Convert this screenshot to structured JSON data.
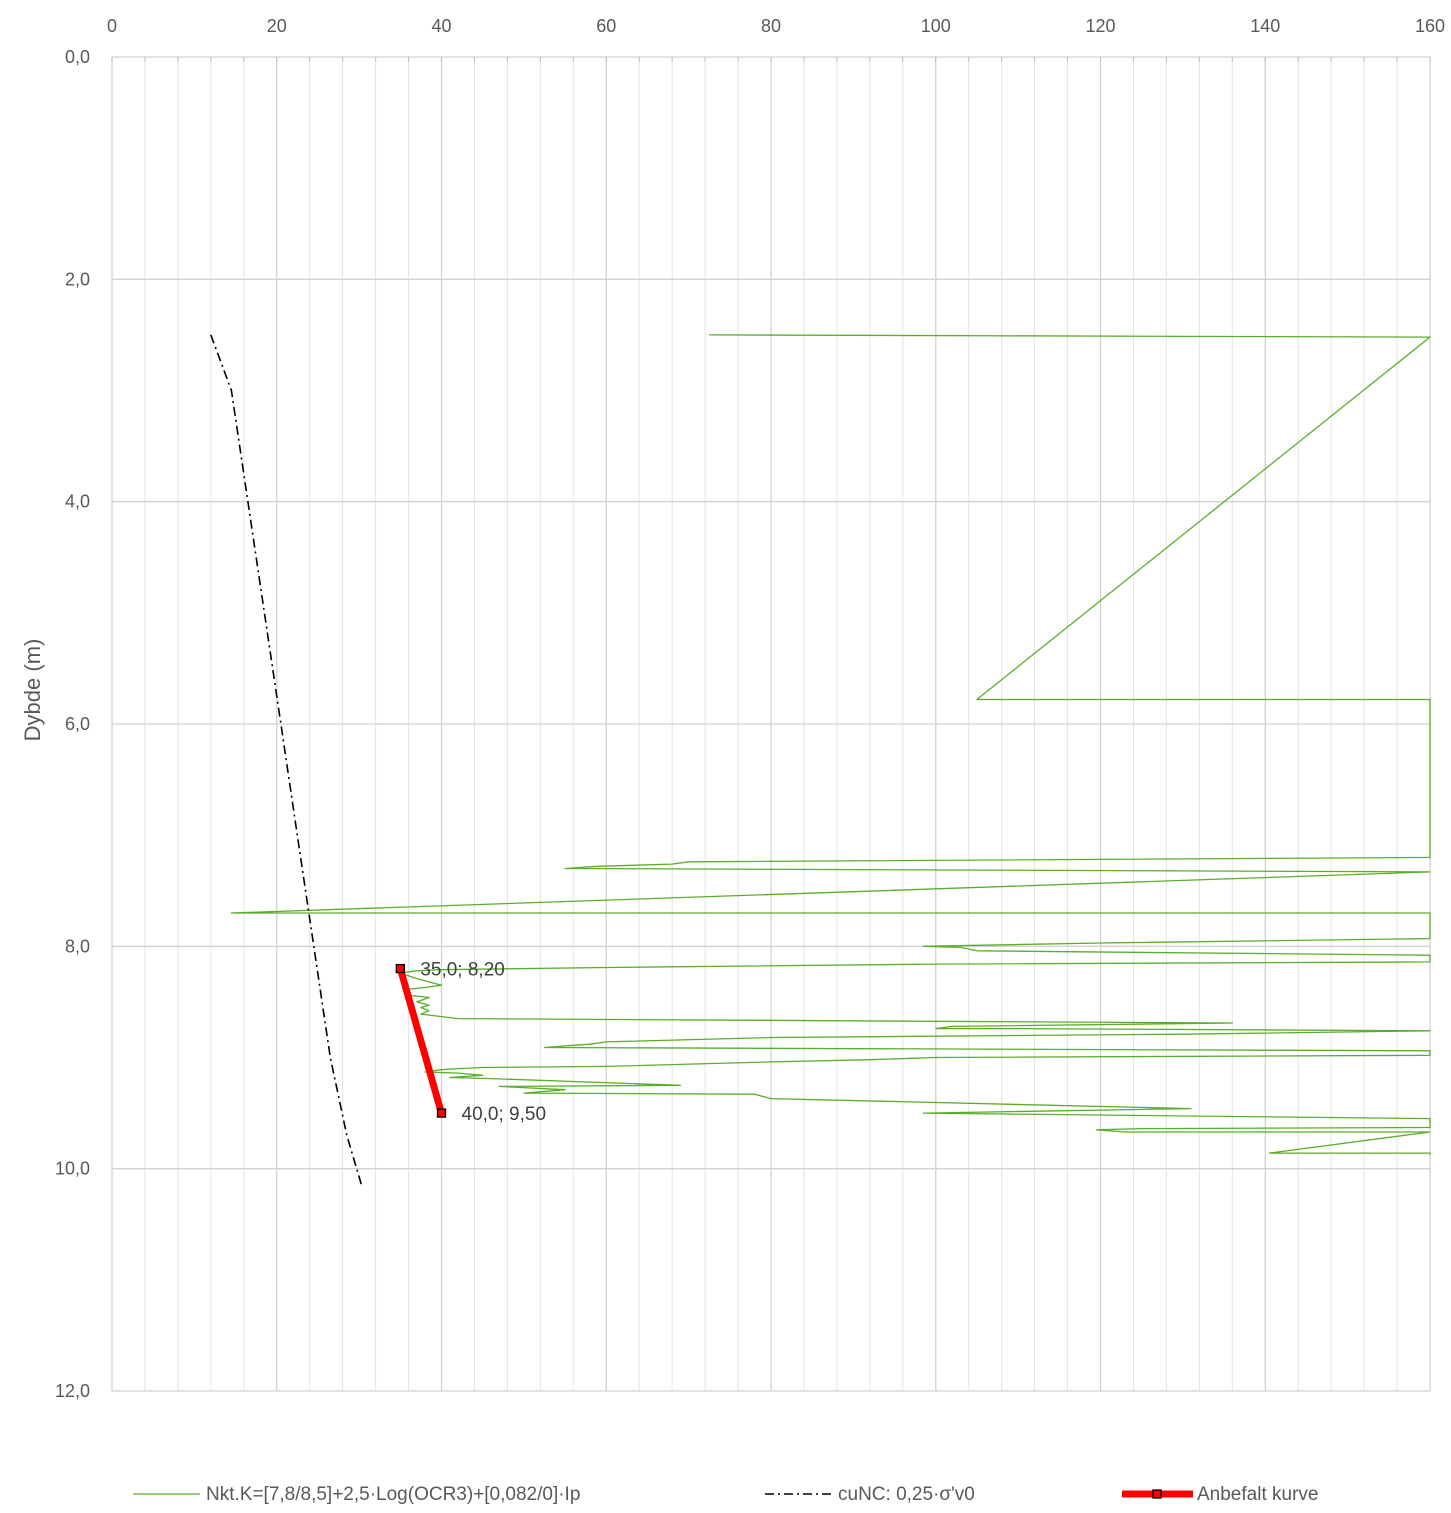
{
  "chart_data": {
    "type": "line",
    "title": "",
    "xlabel": "",
    "ylabel": "Dybde (m)",
    "xlim": [
      0,
      160
    ],
    "ylim": [
      12,
      0
    ],
    "y_inverted": true,
    "x_axis_position": "top",
    "x_ticks": [
      "0",
      "20",
      "40",
      "60",
      "80",
      "100",
      "120",
      "140",
      "160"
    ],
    "y_ticks": [
      "0,0",
      "2,0",
      "4,0",
      "6,0",
      "8,0",
      "10,0",
      "12,0"
    ],
    "grid": true,
    "legend_position": "bottom",
    "colors": {
      "nkt": "#5aad2b",
      "cunc": "#000000",
      "anbefalt": "#ff0000"
    },
    "series": [
      {
        "name": "Nkt.K=[7,8/8,5]+2,5·Log(OCR3)+[0,082/0]·Ip",
        "style": "solid-thin",
        "points": [
          [
            72.5,
            2.5
          ],
          [
            160,
            2.52
          ],
          [
            105,
            5.78
          ],
          [
            160,
            5.78
          ],
          [
            160,
            7.2
          ],
          [
            70,
            7.24
          ],
          [
            68,
            7.26
          ],
          [
            59,
            7.28
          ],
          [
            55,
            7.3
          ],
          [
            160,
            7.33
          ],
          [
            14.5,
            7.7
          ],
          [
            160,
            7.7
          ],
          [
            160,
            7.93
          ],
          [
            120,
            7.97
          ],
          [
            98.5,
            8.0
          ],
          [
            103,
            8.01
          ],
          [
            105,
            8.04
          ],
          [
            160,
            8.08
          ],
          [
            160,
            8.14
          ],
          [
            100,
            8.16
          ],
          [
            60,
            8.19
          ],
          [
            40,
            8.21
          ],
          [
            37,
            8.22
          ],
          [
            35,
            8.24
          ],
          [
            37,
            8.29
          ],
          [
            40,
            8.35
          ],
          [
            38,
            8.37
          ],
          [
            35.5,
            8.39
          ],
          [
            36,
            8.44
          ],
          [
            38.5,
            8.46
          ],
          [
            37,
            8.5
          ],
          [
            38.5,
            8.53
          ],
          [
            37.5,
            8.55
          ],
          [
            38.5,
            8.58
          ],
          [
            37.5,
            8.61
          ],
          [
            42,
            8.65
          ],
          [
            136,
            8.69
          ],
          [
            102,
            8.72
          ],
          [
            100,
            8.74
          ],
          [
            110,
            8.74
          ],
          [
            160,
            8.76
          ],
          [
            130,
            8.79
          ],
          [
            80,
            8.82
          ],
          [
            60,
            8.86
          ],
          [
            58,
            8.88
          ],
          [
            56,
            8.89
          ],
          [
            52.5,
            8.91
          ],
          [
            160,
            8.94
          ],
          [
            160,
            8.98
          ],
          [
            100,
            9.0
          ],
          [
            92,
            9.02
          ],
          [
            80,
            9.04
          ],
          [
            60,
            9.08
          ],
          [
            45,
            9.09
          ],
          [
            42,
            9.1
          ],
          [
            40,
            9.11
          ],
          [
            38,
            9.13
          ],
          [
            42,
            9.14
          ],
          [
            45,
            9.16
          ],
          [
            41,
            9.18
          ],
          [
            46,
            9.19
          ],
          [
            69,
            9.25
          ],
          [
            47,
            9.26
          ],
          [
            55,
            9.29
          ],
          [
            50,
            9.32
          ],
          [
            78,
            9.33
          ],
          [
            80,
            9.37
          ],
          [
            131,
            9.46
          ],
          [
            98.5,
            9.5
          ],
          [
            160,
            9.55
          ],
          [
            160,
            9.63
          ],
          [
            125,
            9.64
          ],
          [
            119.5,
            9.65
          ],
          [
            123,
            9.67
          ],
          [
            160,
            9.67
          ],
          [
            140.5,
            9.86
          ],
          [
            160,
            9.86
          ],
          [
            160,
            9.88
          ]
        ]
      },
      {
        "name": "cuNC: 0,25·σ'v0",
        "style": "dash-dot",
        "points": [
          [
            12,
            2.5
          ],
          [
            13,
            2.7
          ],
          [
            14.5,
            3.0
          ],
          [
            16.5,
            4.0
          ],
          [
            18.5,
            5.0
          ],
          [
            20.5,
            6.0
          ],
          [
            22.5,
            7.0
          ],
          [
            24.5,
            8.0
          ],
          [
            26.5,
            9.0
          ],
          [
            28.5,
            9.7
          ],
          [
            30.3,
            10.15
          ]
        ]
      },
      {
        "name": "Anbefalt kurve",
        "style": "thick-with-markers",
        "points": [
          [
            35.0,
            8.2
          ],
          [
            40.0,
            9.5
          ]
        ],
        "labels": [
          "35,0; 8,20",
          "40,0; 9,50"
        ]
      }
    ]
  }
}
